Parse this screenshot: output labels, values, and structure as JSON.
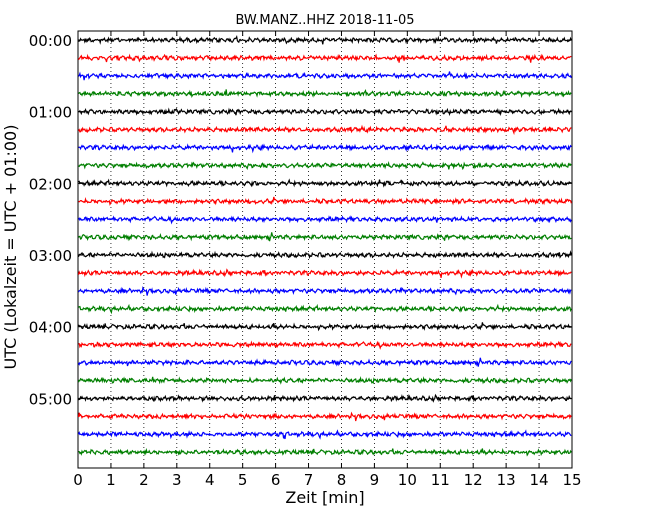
{
  "chart_data": {
    "type": "line",
    "title": "BW.MANZ..HHZ 2018-11-05",
    "xlabel": "Zeit  [min]",
    "ylabel": "UTC (Lokalzeit = UTC + 01:00)",
    "xlim": [
      0,
      15
    ],
    "x_ticks": [
      "0",
      "1",
      "2",
      "3",
      "4",
      "5",
      "6",
      "7",
      "8",
      "9",
      "10",
      "11",
      "12",
      "13",
      "14",
      "15"
    ],
    "y_tick_labels": [
      "00:00",
      "01:00",
      "02:00",
      "03:00",
      "04:00",
      "05:00"
    ],
    "grid": "vertical dotted lines at each minute",
    "trace_colors": [
      "#000000",
      "#ff0000",
      "#0000ff",
      "#007f00"
    ],
    "traces_count": 24,
    "trace_interval_min": 15
  }
}
